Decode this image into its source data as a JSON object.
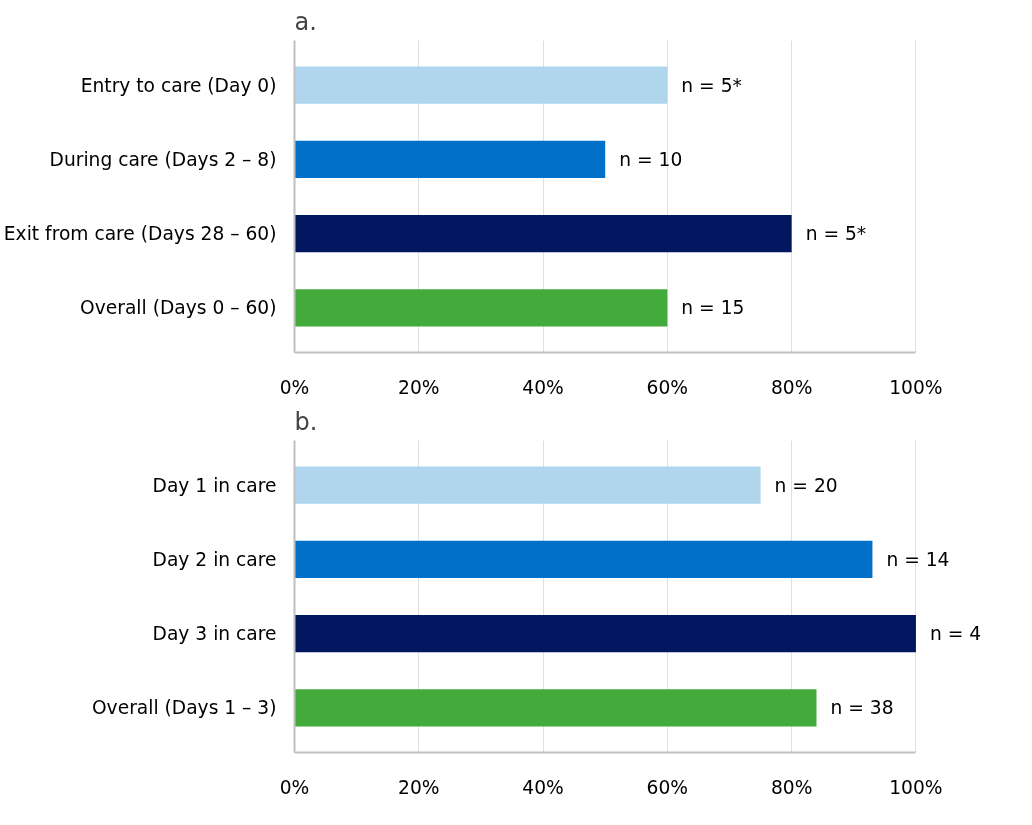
{
  "chart_data": [
    {
      "type": "bar",
      "title": "a.",
      "orientation": "horizontal",
      "categories": [
        "Entry to care (Day 0)",
        "During care (Days 2 – 8)",
        "Exit from care (Days 28 – 60)",
        "Overall (Days 0 – 60)"
      ],
      "values": [
        60,
        50,
        80,
        60
      ],
      "colors": [
        "#afd6ec",
        "#0070c8",
        "#001760",
        "#43ab3b"
      ],
      "annotations": [
        {
          "text": "n = 5*",
          "x": 60,
          "y": "Entry to care (Day 0)"
        },
        {
          "text": "n = 10",
          "x": 50,
          "y": "During care (Days 2 – 8)"
        },
        {
          "text": "n = 5*",
          "x": 80,
          "y": "Exit from care (Days 28 – 60)"
        },
        {
          "text": "n = 15",
          "x": 60,
          "y": "Overall (Days 0 – 60)"
        }
      ],
      "xlim": [
        0,
        100
      ],
      "xticks": [
        {
          "value": 0,
          "label": "0%"
        },
        {
          "value": 20,
          "label": "20%"
        },
        {
          "value": 40,
          "label": "40%"
        },
        {
          "value": 60,
          "label": "60%"
        },
        {
          "value": 80,
          "label": "80%"
        },
        {
          "value": 100,
          "label": "100%"
        }
      ],
      "grid": "x",
      "legend": false
    },
    {
      "type": "bar",
      "title": "b.",
      "orientation": "horizontal",
      "categories": [
        "Day 1 in care",
        "Day 2 in care",
        "Day 3 in care",
        "Overall (Days 1 – 3)"
      ],
      "values": [
        75,
        93,
        100,
        84
      ],
      "colors": [
        "#afd6ec",
        "#0070c8",
        "#001760",
        "#43ab3b"
      ],
      "annotations": [
        {
          "text": "n = 20",
          "x": 75,
          "y": "Day 1 in care"
        },
        {
          "text": "n = 14",
          "x": 93,
          "y": "Day 2 in care"
        },
        {
          "text": "n = 4",
          "x": 100,
          "y": "Day 3 in care"
        },
        {
          "text": "n = 38",
          "x": 84,
          "y": "Overall (Days 1 – 3)"
        }
      ],
      "xlim": [
        0,
        100
      ],
      "xticks": [
        {
          "value": 0,
          "label": "0%"
        },
        {
          "value": 20,
          "label": "20%"
        },
        {
          "value": 40,
          "label": "40%"
        },
        {
          "value": 60,
          "label": "60%"
        },
        {
          "value": 80,
          "label": "80%"
        },
        {
          "value": 100,
          "label": "100%"
        }
      ],
      "grid": "x",
      "legend": false
    }
  ]
}
